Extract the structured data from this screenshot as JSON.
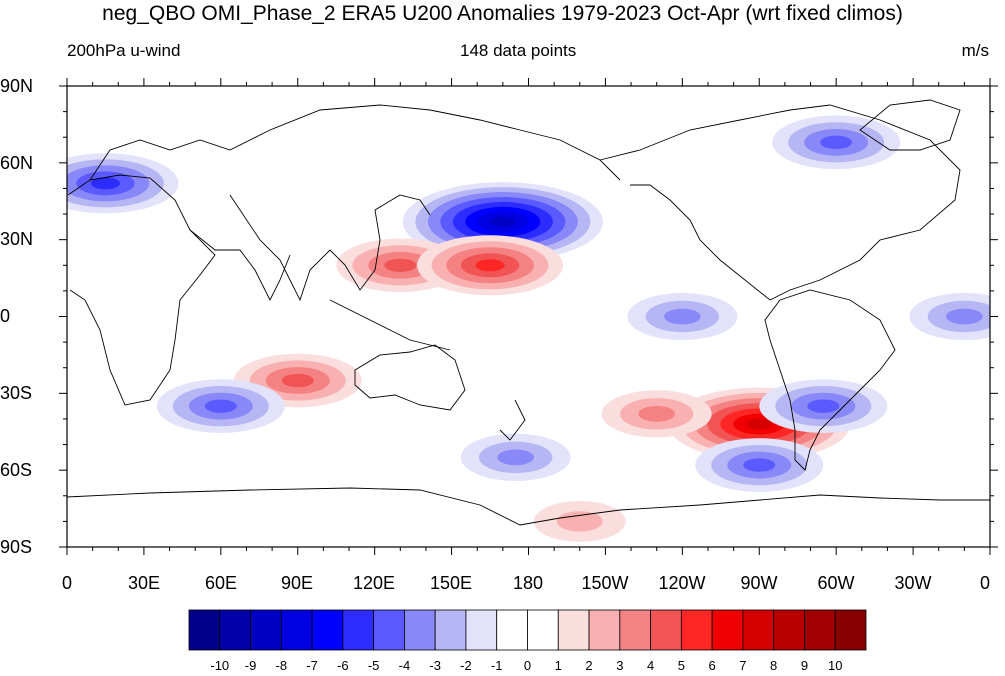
{
  "title": "neg_QBO OMI_Phase_2 ERA5 U200 Anomalies 1979-2023 Oct-Apr (wrt fixed climos)",
  "subtitle_left": "200hPa u-wind",
  "subtitle_center": "148 data points",
  "subtitle_right": "m/s",
  "lat_ticks": [
    "90N",
    "60N",
    "30N",
    "0",
    "30S",
    "60S",
    "90S"
  ],
  "lon_ticks": [
    "0",
    "30E",
    "60E",
    "90E",
    "120E",
    "150E",
    "180",
    "150W",
    "120W",
    "90W",
    "60W",
    "30W",
    "0"
  ],
  "colorbar": {
    "labels": [
      "-10",
      "-9",
      "-8",
      "-7",
      "-6",
      "-5",
      "-4",
      "-3",
      "-2",
      "-1",
      "0",
      "1",
      "2",
      "3",
      "4",
      "5",
      "6",
      "7",
      "8",
      "9",
      "10"
    ],
    "colors": [
      "#00008b",
      "#0000a8",
      "#0000c4",
      "#0000e0",
      "#0000ff",
      "#2c2cff",
      "#5a5aff",
      "#8888f8",
      "#b6b6f4",
      "#e2e2fa",
      "#ffffff",
      "#ffffff",
      "#fadede",
      "#f8b0b0",
      "#f48282",
      "#f05454",
      "#ff2626",
      "#f00000",
      "#d40000",
      "#b80000",
      "#a00000",
      "#880000"
    ]
  },
  "chart_data": {
    "type": "heatmap",
    "variable": "U200 anomaly",
    "units": "m/s",
    "xlim": [
      0,
      360
    ],
    "ylim": [
      -90,
      90
    ],
    "anomaly_centers": [
      {
        "lon": 170,
        "lat": 37,
        "value": -8
      },
      {
        "lon": 130,
        "lat": 20,
        "value": 4
      },
      {
        "lon": 165,
        "lat": 20,
        "value": 5
      },
      {
        "lon": 270,
        "lat": -42,
        "value": 7
      },
      {
        "lon": 90,
        "lat": -25,
        "value": 4
      },
      {
        "lon": 15,
        "lat": 52,
        "value": -5
      },
      {
        "lon": 295,
        "lat": -35,
        "value": -4
      },
      {
        "lon": 270,
        "lat": -58,
        "value": -4
      },
      {
        "lon": 175,
        "lat": -55,
        "value": -3
      },
      {
        "lon": 300,
        "lat": 68,
        "value": -4
      },
      {
        "lon": 60,
        "lat": -35,
        "value": -4
      },
      {
        "lon": 230,
        "lat": -38,
        "value": 3
      },
      {
        "lon": 200,
        "lat": -80,
        "value": 2
      },
      {
        "lon": 240,
        "lat": 0,
        "value": -3
      },
      {
        "lon": 350,
        "lat": 0,
        "value": -3
      }
    ]
  }
}
